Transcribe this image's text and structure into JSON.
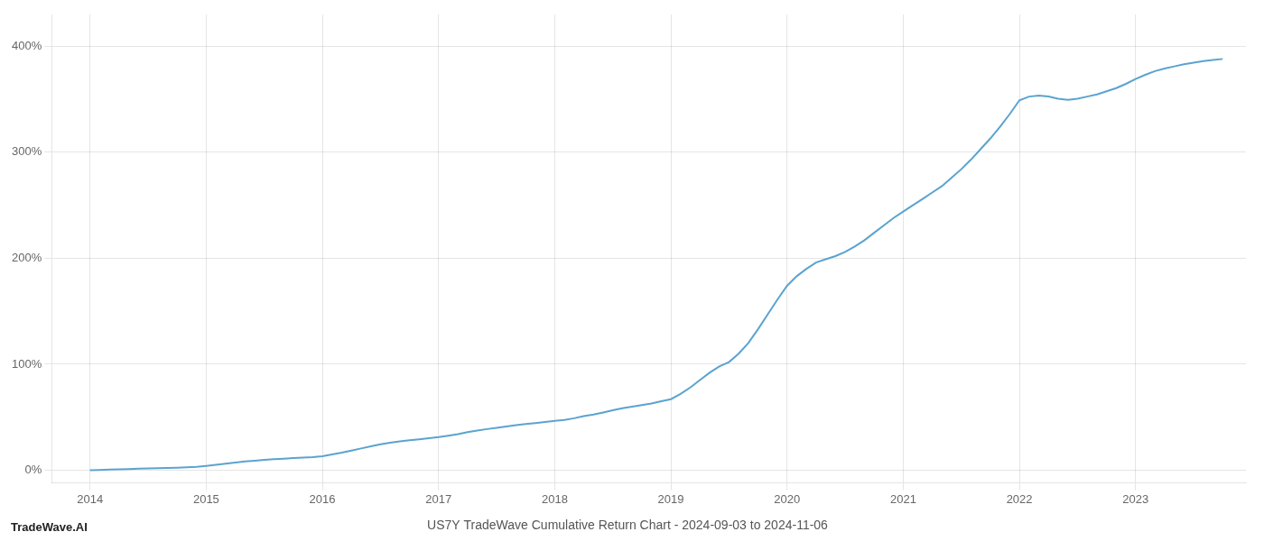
{
  "chart_data": {
    "type": "line",
    "title": "US7Y TradeWave Cumulative Return Chart - 2024-09-03 to 2024-11-06",
    "annotations": [
      "TradeWave.AI"
    ],
    "color": "#5ba3d0",
    "grid": true,
    "x": [
      2014.0,
      2014.083,
      2014.167,
      2014.25,
      2014.333,
      2014.417,
      2014.5,
      2014.583,
      2014.667,
      2014.75,
      2014.833,
      2014.917,
      2015.0,
      2015.083,
      2015.167,
      2015.25,
      2015.333,
      2015.417,
      2015.5,
      2015.583,
      2015.667,
      2015.75,
      2015.833,
      2015.917,
      2016.0,
      2016.083,
      2016.167,
      2016.25,
      2016.333,
      2016.417,
      2016.5,
      2016.583,
      2016.667,
      2016.75,
      2016.833,
      2016.917,
      2017.0,
      2017.083,
      2017.167,
      2017.25,
      2017.333,
      2017.417,
      2017.5,
      2017.583,
      2017.667,
      2017.75,
      2017.833,
      2017.917,
      2018.0,
      2018.083,
      2018.167,
      2018.25,
      2018.333,
      2018.417,
      2018.5,
      2018.583,
      2018.667,
      2018.75,
      2018.833,
      2018.917,
      2019.0,
      2019.083,
      2019.167,
      2019.25,
      2019.333,
      2019.417,
      2019.5,
      2019.583,
      2019.667,
      2019.75,
      2019.833,
      2019.917,
      2020.0,
      2020.083,
      2020.167,
      2020.25,
      2020.333,
      2020.417,
      2020.5,
      2020.583,
      2020.667,
      2020.75,
      2020.833,
      2020.917,
      2021.0,
      2021.083,
      2021.167,
      2021.25,
      2021.333,
      2021.417,
      2021.5,
      2021.583,
      2021.667,
      2021.75,
      2021.833,
      2021.917,
      2022.0,
      2022.083,
      2022.167,
      2022.25,
      2022.333,
      2022.417,
      2022.5,
      2022.583,
      2022.667,
      2022.75,
      2022.833,
      2022.917,
      2023.0,
      2023.083,
      2023.167,
      2023.25,
      2023.333,
      2023.417,
      2023.5,
      2023.583,
      2023.667,
      2023.75
    ],
    "values": [
      0.0,
      0.3,
      0.6,
      0.9,
      1.1,
      1.4,
      1.7,
      1.9,
      2.1,
      2.4,
      2.7,
      3.2,
      4.0,
      5.0,
      6.2,
      7.3,
      8.2,
      9.0,
      9.8,
      10.4,
      10.9,
      11.4,
      11.9,
      12.4,
      13.2,
      14.8,
      16.5,
      18.5,
      20.5,
      22.5,
      24.5,
      26.0,
      27.2,
      28.2,
      29.2,
      30.2,
      31.2,
      32.5,
      34.0,
      36.0,
      37.5,
      38.8,
      40.0,
      41.2,
      42.5,
      43.5,
      44.5,
      45.5,
      46.5,
      47.5,
      49.0,
      51.0,
      52.5,
      54.5,
      56.5,
      58.5,
      60.0,
      61.5,
      63.0,
      65.0,
      67.0,
      72.0,
      78.0,
      85.0,
      92.0,
      98.0,
      102.0,
      110.0,
      120.0,
      133.0,
      147.0,
      161.0,
      174.0,
      183.0,
      190.0,
      196.0,
      199.0,
      202.0,
      206.0,
      211.0,
      217.0,
      224.0,
      231.0,
      238.0,
      244.0,
      250.0,
      256.0,
      262.0,
      268.0,
      276.0,
      284.0,
      293.0,
      303.0,
      313.0,
      324.0,
      336.0,
      349.0,
      352.5,
      353.5,
      352.5,
      350.5,
      349.5,
      350.5,
      352.5,
      354.5,
      357.5,
      360.5,
      364.5,
      369.0,
      373.0,
      376.5,
      379.0,
      381.0,
      383.0,
      384.5,
      386.0,
      387.0,
      388.0
    ],
    "xlim": [
      2013.67,
      2023.95
    ],
    "ylim": [
      -12,
      430
    ],
    "xticks": [
      2014,
      2015,
      2016,
      2017,
      2018,
      2019,
      2020,
      2021,
      2022,
      2023
    ],
    "yticks": [
      {
        "value": 0,
        "label": "0%"
      },
      {
        "value": 100,
        "label": "100%"
      },
      {
        "value": 200,
        "label": "200%"
      },
      {
        "value": 300,
        "label": "300%"
      },
      {
        "value": 400,
        "label": "400%"
      }
    ]
  }
}
